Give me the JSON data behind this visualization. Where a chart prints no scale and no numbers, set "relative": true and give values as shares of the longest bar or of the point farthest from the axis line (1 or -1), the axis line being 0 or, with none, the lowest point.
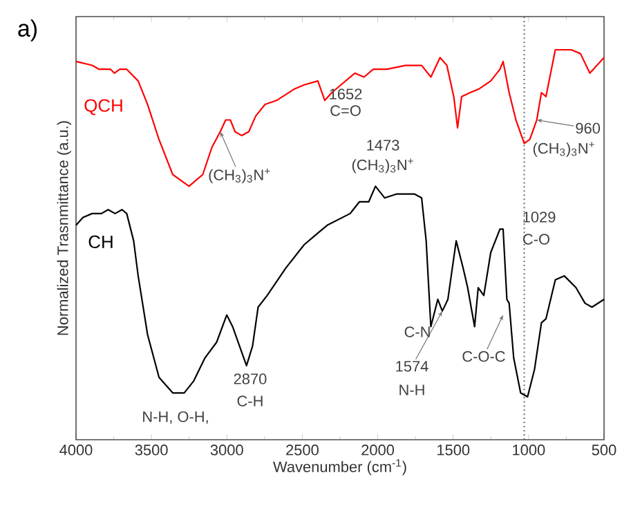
{
  "chart_data": {
    "type": "line",
    "title": "a)",
    "xlabel": "Wavenumber (cm$^{-1}$)",
    "ylabel": "Normalized Trasnmittance (a.u.)",
    "xlim": [
      4000,
      500
    ],
    "xticks": [
      4000,
      3500,
      3000,
      2500,
      2000,
      1500,
      1000,
      500
    ],
    "relative": true,
    "series": [
      {
        "name": "QCH",
        "color": "#ff0000",
        "x": [
          4000,
          3893,
          3847,
          3771,
          3746,
          3710,
          3664,
          3588,
          3526,
          3450,
          3359,
          3251,
          3160,
          3099,
          3044,
          3008,
          2977,
          2946,
          2901,
          2855,
          2809,
          2747,
          2671,
          2550,
          2488,
          2397,
          2351,
          2305,
          2244,
          2152,
          2091,
          2030,
          1939,
          1816,
          1709,
          1648,
          1587,
          1542,
          1496,
          1471,
          1444,
          1389,
          1327,
          1251,
          1190,
          1169,
          1129,
          1084,
          1029,
          992,
          946,
          915,
          885,
          823,
          717,
          656,
          594,
          500
        ],
        "values": [
          0.97,
          0.96,
          0.95,
          0.95,
          0.94,
          0.95,
          0.95,
          0.92,
          0.86,
          0.77,
          0.68,
          0.65,
          0.68,
          0.75,
          0.79,
          0.82,
          0.82,
          0.79,
          0.78,
          0.79,
          0.83,
          0.86,
          0.87,
          0.9,
          0.91,
          0.92,
          0.87,
          0.89,
          0.91,
          0.94,
          0.93,
          0.95,
          0.95,
          0.96,
          0.96,
          0.93,
          0.98,
          0.96,
          0.88,
          0.8,
          0.88,
          0.89,
          0.9,
          0.92,
          0.95,
          0.97,
          0.89,
          0.82,
          0.76,
          0.77,
          0.82,
          0.89,
          0.88,
          1.0,
          1.0,
          0.99,
          0.94,
          0.98
        ]
      },
      {
        "name": "CH",
        "color": "#000000",
        "x": [
          4000,
          3954,
          3893,
          3832,
          3787,
          3741,
          3695,
          3664,
          3618,
          3588,
          3526,
          3450,
          3359,
          3283,
          3221,
          3145,
          3068,
          3001,
          2962,
          2916,
          2870,
          2830,
          2793,
          2733,
          2610,
          2488,
          2397,
          2335,
          2183,
          2122,
          2060,
          2015,
          1954,
          1877,
          1755,
          1709,
          1679,
          1648,
          1602,
          1572,
          1535,
          1480,
          1434,
          1404,
          1358,
          1334,
          1297,
          1251,
          1190,
          1169,
          1144,
          1129,
          1099,
          1053,
          1007,
          961,
          915,
          885,
          823,
          763,
          686,
          626,
          580,
          500
        ],
        "values": [
          0.55,
          0.57,
          0.58,
          0.58,
          0.59,
          0.58,
          0.59,
          0.58,
          0.51,
          0.42,
          0.27,
          0.16,
          0.12,
          0.12,
          0.15,
          0.21,
          0.25,
          0.32,
          0.29,
          0.24,
          0.19,
          0.24,
          0.34,
          0.37,
          0.44,
          0.5,
          0.53,
          0.55,
          0.58,
          0.61,
          0.61,
          0.65,
          0.62,
          0.63,
          0.63,
          0.62,
          0.51,
          0.29,
          0.36,
          0.33,
          0.36,
          0.51,
          0.44,
          0.39,
          0.29,
          0.39,
          0.37,
          0.48,
          0.54,
          0.54,
          0.36,
          0.35,
          0.21,
          0.12,
          0.11,
          0.18,
          0.3,
          0.31,
          0.41,
          0.42,
          0.39,
          0.35,
          0.34,
          0.36
        ]
      }
    ],
    "ref_lines": [
      {
        "axis": "x",
        "value": 1029,
        "line_style": "dotted",
        "color": "#666666"
      }
    ],
    "annotations": [
      {
        "text": "(CH$_{3}$)$_{3}$N$^{+}$",
        "x": 3044,
        "y": 0.79
      },
      "1652",
      "C=O",
      "1473",
      "(CH$_{3}$)$_{3}$N$^{+}$",
      {
        "text": "960",
        "x": 946,
        "y": 0.82
      },
      "(CH$_{3}$)$_{3}$N$^{+}$",
      "1029",
      "C-O",
      "2870",
      "C-H",
      "N-H, O-H,",
      {
        "text": "1574",
        "x": 1572,
        "y": 0.33
      },
      "N-H",
      "C-N",
      {
        "text": "C-O-C",
        "x": 1169,
        "y": 0.32
      }
    ]
  }
}
